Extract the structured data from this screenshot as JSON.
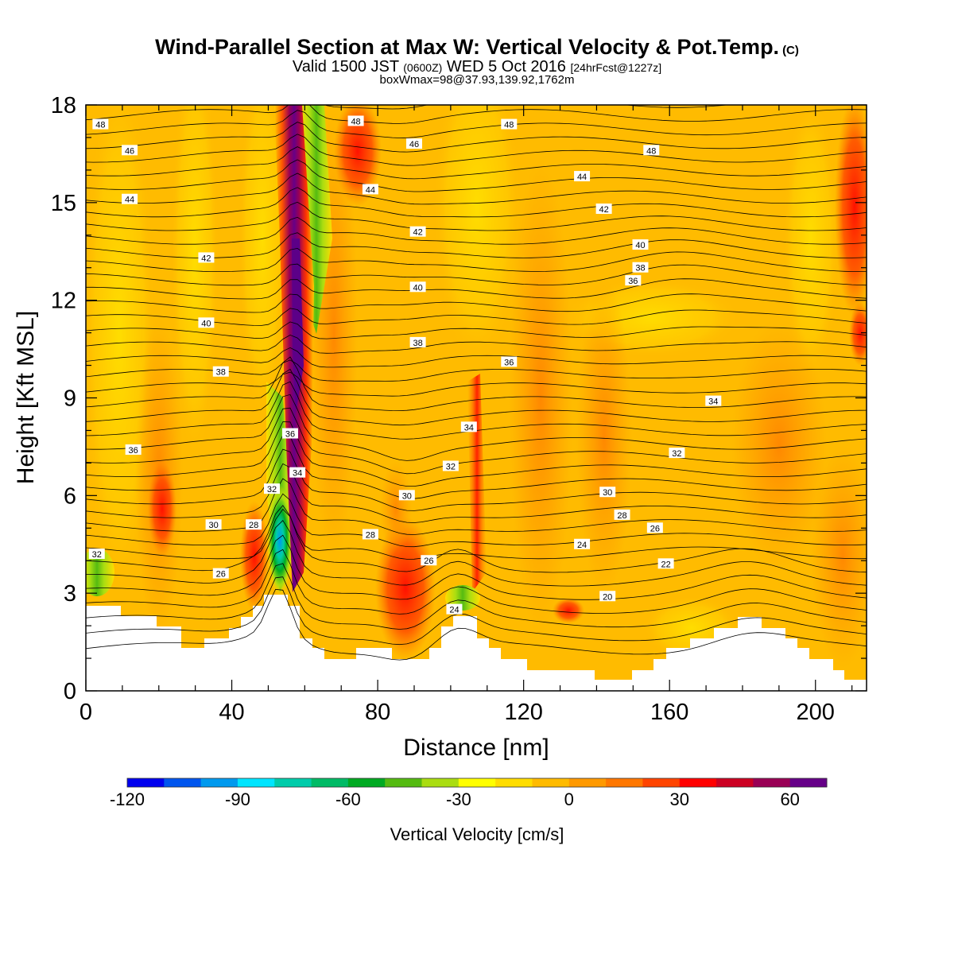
{
  "title": {
    "main": "Wind-Parallel Section at Max W: Vertical Velocity & Pot.Temp.",
    "copyright": "(C)",
    "valid_prefix": "Valid 1500 JST",
    "valid_utc": "(0600Z)",
    "valid_date": "WED 5 Oct 2016",
    "forecast": "[24hrFcst@1227z]",
    "box": "boxWmax=98@37.93,139.92,1762m"
  },
  "chart_data": {
    "type": "heatmap",
    "xlabel": "Distance [nm]",
    "ylabel": "Height [Kft MSL]",
    "xlim": [
      0,
      214
    ],
    "ylim": [
      0,
      18
    ],
    "x_ticks": [
      0,
      40,
      80,
      120,
      160,
      200
    ],
    "y_ticks": [
      0,
      3,
      6,
      9,
      12,
      15,
      18
    ],
    "colorbar": {
      "label": "Vertical Velocity [cm/s]",
      "min": -120,
      "max": 70,
      "step": 10,
      "tick_values": [
        -120,
        -90,
        -60,
        -30,
        0,
        30,
        60
      ],
      "colors": [
        "#0000ee",
        "#0055ee",
        "#0099ee",
        "#00e5ff",
        "#00ccaa",
        "#00bb66",
        "#00aa22",
        "#55bb11",
        "#aadd11",
        "#ffff00",
        "#ffdd00",
        "#ffbb00",
        "#ff9900",
        "#ff7700",
        "#ff4400",
        "#ff0000",
        "#cc0022",
        "#990055",
        "#660088"
      ]
    },
    "theta_labels": [
      {
        "x": 4,
        "y": 17.4,
        "text": "48"
      },
      {
        "x": 74,
        "y": 17.5,
        "text": "48"
      },
      {
        "x": 116,
        "y": 17.4,
        "text": "48"
      },
      {
        "x": 155,
        "y": 16.6,
        "text": "48"
      },
      {
        "x": 12,
        "y": 16.6,
        "text": "46"
      },
      {
        "x": 90,
        "y": 16.8,
        "text": "46"
      },
      {
        "x": 12,
        "y": 15.1,
        "text": "44"
      },
      {
        "x": 78,
        "y": 15.4,
        "text": "44"
      },
      {
        "x": 136,
        "y": 15.8,
        "text": "44"
      },
      {
        "x": 142,
        "y": 14.8,
        "text": "42"
      },
      {
        "x": 33,
        "y": 13.3,
        "text": "42"
      },
      {
        "x": 91,
        "y": 14.1,
        "text": "42"
      },
      {
        "x": 152,
        "y": 13.7,
        "text": "40"
      },
      {
        "x": 33,
        "y": 11.3,
        "text": "40"
      },
      {
        "x": 91,
        "y": 12.4,
        "text": "40"
      },
      {
        "x": 152,
        "y": 13.0,
        "text": "38"
      },
      {
        "x": 91,
        "y": 10.7,
        "text": "38"
      },
      {
        "x": 37,
        "y": 9.8,
        "text": "38"
      },
      {
        "x": 150,
        "y": 12.6,
        "text": "36"
      },
      {
        "x": 116,
        "y": 10.1,
        "text": "36"
      },
      {
        "x": 56,
        "y": 7.9,
        "text": "36"
      },
      {
        "x": 13,
        "y": 7.4,
        "text": "36"
      },
      {
        "x": 172,
        "y": 8.9,
        "text": "34"
      },
      {
        "x": 105,
        "y": 8.1,
        "text": "34"
      },
      {
        "x": 58,
        "y": 6.7,
        "text": "34"
      },
      {
        "x": 51,
        "y": 6.2,
        "text": "32"
      },
      {
        "x": 100,
        "y": 6.9,
        "text": "32"
      },
      {
        "x": 162,
        "y": 7.3,
        "text": "32"
      },
      {
        "x": 3,
        "y": 4.2,
        "text": "32"
      },
      {
        "x": 35,
        "y": 5.1,
        "text": "30"
      },
      {
        "x": 88,
        "y": 6.0,
        "text": "30"
      },
      {
        "x": 143,
        "y": 6.1,
        "text": "30"
      },
      {
        "x": 46,
        "y": 5.1,
        "text": "28"
      },
      {
        "x": 78,
        "y": 4.8,
        "text": "28"
      },
      {
        "x": 147,
        "y": 5.4,
        "text": "28"
      },
      {
        "x": 156,
        "y": 5.0,
        "text": "26"
      },
      {
        "x": 37,
        "y": 3.6,
        "text": "26"
      },
      {
        "x": 94,
        "y": 4.0,
        "text": "26"
      },
      {
        "x": 136,
        "y": 4.5,
        "text": "24"
      },
      {
        "x": 101,
        "y": 2.5,
        "text": "24"
      },
      {
        "x": 159,
        "y": 3.9,
        "text": "22"
      },
      {
        "x": 143,
        "y": 2.9,
        "text": "20"
      }
    ]
  }
}
